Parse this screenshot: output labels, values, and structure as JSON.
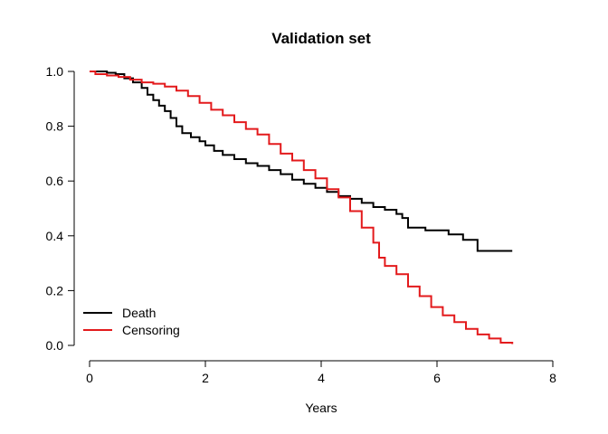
{
  "chart_data": {
    "type": "line",
    "step": true,
    "title": "Validation set",
    "xlabel": "Years",
    "ylabel": "",
    "xlim": [
      0,
      8
    ],
    "ylim": [
      0,
      1
    ],
    "xticks": [
      "0",
      "2",
      "4",
      "6",
      "8"
    ],
    "yticks": [
      "0.0",
      "0.2",
      "0.4",
      "0.6",
      "0.8",
      "1.0"
    ],
    "grid": false,
    "legend": "bottom-left",
    "series": [
      {
        "name": "Death",
        "color": "#000000",
        "x": [
          0,
          0.2,
          0.3,
          0.45,
          0.6,
          0.75,
          0.9,
          1.0,
          1.1,
          1.2,
          1.3,
          1.4,
          1.5,
          1.6,
          1.75,
          1.9,
          2.0,
          2.15,
          2.3,
          2.5,
          2.7,
          2.9,
          3.1,
          3.3,
          3.5,
          3.7,
          3.9,
          4.1,
          4.3,
          4.5,
          4.7,
          4.9,
          5.1,
          5.3,
          5.4,
          5.5,
          5.6,
          5.8,
          6.0,
          6.2,
          6.45,
          6.7,
          7.0,
          7.3
        ],
        "y": [
          1.0,
          1.0,
          0.995,
          0.99,
          0.975,
          0.96,
          0.94,
          0.915,
          0.895,
          0.875,
          0.855,
          0.83,
          0.8,
          0.775,
          0.76,
          0.745,
          0.73,
          0.71,
          0.695,
          0.68,
          0.665,
          0.655,
          0.64,
          0.625,
          0.605,
          0.59,
          0.575,
          0.56,
          0.545,
          0.535,
          0.52,
          0.505,
          0.495,
          0.48,
          0.465,
          0.43,
          0.43,
          0.42,
          0.42,
          0.405,
          0.385,
          0.345,
          0.345,
          0.345
        ]
      },
      {
        "name": "Censoring",
        "color": "#e31a1c",
        "x": [
          0,
          0.1,
          0.3,
          0.5,
          0.7,
          0.9,
          1.1,
          1.3,
          1.5,
          1.7,
          1.9,
          2.1,
          2.3,
          2.5,
          2.7,
          2.9,
          3.1,
          3.3,
          3.5,
          3.7,
          3.9,
          4.1,
          4.3,
          4.5,
          4.7,
          4.9,
          5.0,
          5.1,
          5.3,
          5.5,
          5.7,
          5.9,
          6.1,
          6.3,
          6.5,
          6.7,
          6.9,
          7.1,
          7.3
        ],
        "y": [
          1.0,
          0.99,
          0.985,
          0.98,
          0.97,
          0.96,
          0.955,
          0.945,
          0.93,
          0.91,
          0.885,
          0.86,
          0.84,
          0.815,
          0.79,
          0.77,
          0.735,
          0.7,
          0.675,
          0.64,
          0.61,
          0.57,
          0.54,
          0.49,
          0.43,
          0.375,
          0.32,
          0.29,
          0.26,
          0.215,
          0.18,
          0.14,
          0.11,
          0.085,
          0.06,
          0.04,
          0.025,
          0.01,
          0.005
        ]
      }
    ]
  }
}
